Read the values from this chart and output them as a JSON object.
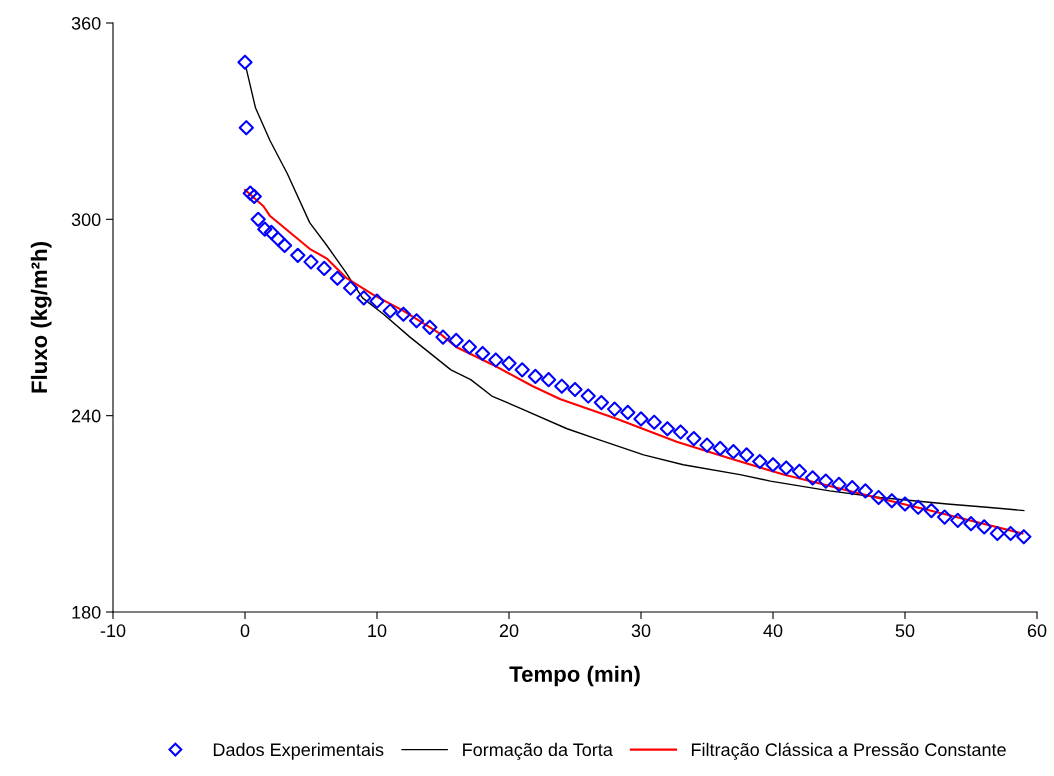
{
  "chart_data": {
    "type": "scatter",
    "xlabel": "Tempo (min)",
    "ylabel": "Fluxo (kg/m²h)",
    "xlim": [
      -10,
      60
    ],
    "xticks": [
      -10,
      0,
      10,
      20,
      30,
      40,
      50,
      60
    ],
    "ylim": [
      180,
      360
    ],
    "yticks": [
      180,
      240,
      300,
      360
    ],
    "grid": false,
    "legend": "bottom",
    "series": [
      {
        "name": "Dados Experimentais",
        "marker": "diamond",
        "color": "#0000ff",
        "x": [
          0,
          0.1,
          0.4,
          0.7,
          1,
          1.5,
          2,
          2.5,
          3,
          4,
          5,
          6,
          7,
          8,
          9,
          10,
          11,
          12,
          13,
          14,
          15,
          16,
          17,
          18,
          19,
          20,
          21,
          22,
          23,
          24,
          25,
          26,
          27,
          28,
          29,
          30,
          31,
          32,
          33,
          34,
          35,
          36,
          37,
          38,
          39,
          40,
          41,
          42,
          43,
          44,
          45,
          46,
          47,
          48,
          49,
          50,
          51,
          52,
          53,
          54,
          55,
          56,
          57,
          58,
          59
        ],
        "values": [
          348,
          328,
          308,
          307,
          300,
          297,
          296,
          294,
          292,
          289,
          287,
          285,
          282,
          279,
          276,
          275,
          272,
          271,
          269,
          267,
          264,
          263,
          261,
          259,
          257,
          256,
          254,
          252,
          251,
          249,
          248,
          246,
          244,
          242,
          241,
          239,
          238,
          236,
          235,
          233,
          231,
          230,
          229,
          228,
          226,
          225,
          224,
          223,
          221,
          220,
          219,
          218,
          217,
          215,
          214,
          213,
          212,
          211,
          209,
          208,
          207,
          206,
          204,
          204,
          203
        ]
      },
      {
        "name": "Formação da Torta",
        "type": "line",
        "marker": "none",
        "line_style": "solid",
        "color": "#000000",
        "x": [
          0.1,
          0.8,
          1.9,
          3.2,
          4.9,
          6.2,
          7.6,
          8.9,
          10.5,
          12.5,
          15.6,
          17.1,
          18.7,
          21,
          24.4,
          26.9,
          30.2,
          33.2,
          37.5,
          39.8,
          44.3,
          48.1,
          53.2,
          56.2,
          59
        ],
        "values": [
          346,
          334,
          324,
          314,
          299,
          292,
          284,
          276,
          271,
          264,
          254,
          251,
          246,
          242,
          236,
          232.5,
          228,
          225,
          222,
          220,
          217,
          215,
          213,
          212,
          211
        ]
      },
      {
        "name": "Filtração Clássica a Pressão Constante",
        "type": "line",
        "marker": "none",
        "line_style": "solid",
        "color": "#ff0000",
        "x": [
          0,
          1.4,
          1.9,
          4.9,
          6.2,
          7.7,
          9.7,
          12,
          14.8,
          16,
          18.8,
          21.8,
          23.9,
          28.2,
          32.7,
          36.7,
          40.8,
          46.8,
          51.9,
          58.9
        ],
        "values": [
          309,
          304,
          301,
          291,
          288,
          282,
          277,
          272,
          265,
          261,
          255.5,
          249,
          245,
          239,
          232,
          227,
          222,
          216,
          211,
          204
        ]
      }
    ]
  }
}
